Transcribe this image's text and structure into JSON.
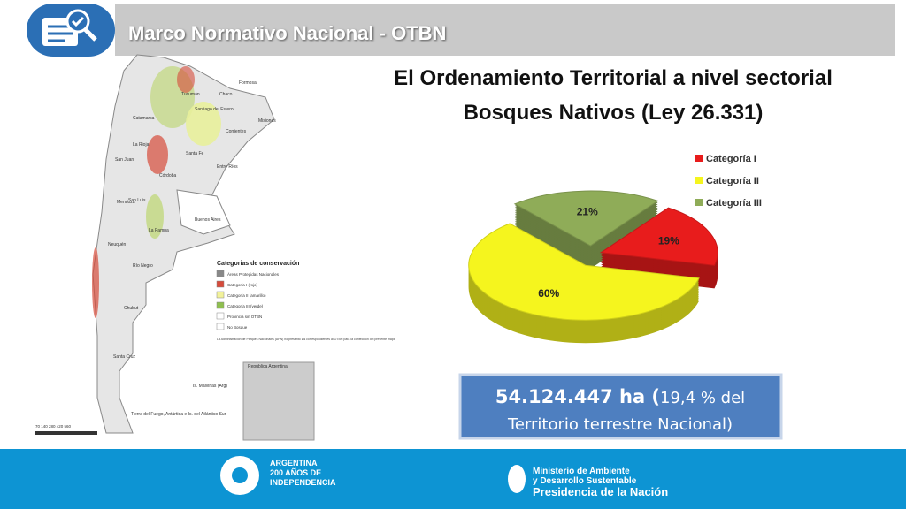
{
  "header": {
    "title": "Marco Normativo Nacional - OTBN"
  },
  "heading": [
    "El Ordenamiento Territorial a nivel sectorial",
    "Bosques Nativos (Ley 26.331)"
  ],
  "map": {
    "provinces": [
      "Catamarca",
      "Tucumán",
      "Santiago del Estero",
      "Chaco",
      "Formosa",
      "Misiones",
      "Corrientes",
      "La Rioja",
      "San Juan",
      "Córdoba",
      "Santa Fe",
      "Entre Ríos",
      "San Luis",
      "Mendoza",
      "Buenos Aires",
      "La Pampa",
      "Neuquén",
      "Río Negro",
      "Chubut",
      "Santa Cruz",
      "Is. Malvinas (Arg)",
      "Tierra del Fuego, Antártida e Is. del Atlántico Sur"
    ],
    "legend_title": "Categorias de conservación",
    "legend": [
      "Áreas Protegidas Nacionales",
      "Categoría I (rojo)",
      "Categoría II (amarillo)",
      "Categoría III (verde)",
      "Provincia sin OTBN",
      "No Bosque"
    ],
    "note": "La Administración de Parques Nacionales (APN) no presentó las correspondientes al OTBN para la confección del presente mapa",
    "inset": "República Argentina",
    "scale": "70 140 280 420 560"
  },
  "chart_data": {
    "type": "pie",
    "categories": [
      "Categoría I",
      "Categoría II",
      "Categoría III"
    ],
    "values": [
      19,
      60,
      21
    ],
    "value_labels": [
      "19%",
      "60%",
      "21%"
    ],
    "colors": [
      "#e81c1c",
      "#f5f51e",
      "#8fac58"
    ]
  },
  "summary": {
    "bold": "54.124.447 ha (",
    "rest": "19,4 % del",
    "line2": "Territorio terrestre Nacional)"
  },
  "footer": {
    "bicentenario": [
      "ARGENTINA",
      "200 AÑOS DE",
      "INDEPENDENCIA"
    ],
    "ministry": [
      "Ministerio de Ambiente",
      "y Desarrollo Sustentable",
      "Presidencia de la Nación"
    ]
  }
}
